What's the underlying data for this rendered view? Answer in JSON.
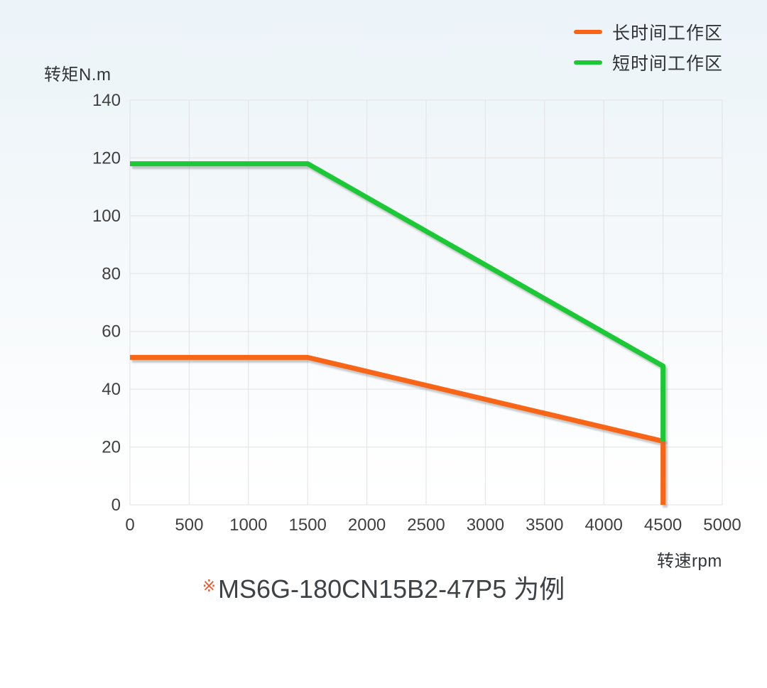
{
  "axes": {
    "y_title": "转矩N.m",
    "x_title": "转速rpm"
  },
  "legend": {
    "items": [
      {
        "label": "长时间工作区",
        "color": "#f96517"
      },
      {
        "label": "短时间工作区",
        "color": "#1dc837"
      }
    ]
  },
  "caption": {
    "mark": "※",
    "mark_color": "#f4572b",
    "text": "MS6G-180CN15B2-47P5 为例"
  },
  "colors": {
    "long_duty_line": "#f96517",
    "short_duty_line": "#1dc837",
    "grid": "#e2e2e2",
    "shadow": "#d4d4d4",
    "background_top": "#edf4f9",
    "background_bottom": "#ffffff",
    "text": "#3f3f3f"
  },
  "chart_data": {
    "type": "line",
    "title": "",
    "xlabel": "转速rpm",
    "ylabel": "转矩N.m",
    "xlim": [
      0,
      5000
    ],
    "ylim": [
      0,
      140
    ],
    "x_ticks": [
      0,
      500,
      1000,
      1500,
      2000,
      2500,
      3000,
      3500,
      4000,
      4500,
      5000
    ],
    "y_ticks": [
      0,
      20,
      40,
      60,
      80,
      100,
      120,
      140
    ],
    "grid": true,
    "legend_position": "top-right",
    "series": [
      {
        "name": "长时间工作区",
        "color": "#f96517",
        "points": [
          [
            0,
            51
          ],
          [
            1500,
            51
          ],
          [
            4500,
            22
          ],
          [
            4500,
            0
          ]
        ]
      },
      {
        "name": "短时间工作区",
        "color": "#1dc837",
        "points": [
          [
            0,
            118
          ],
          [
            1500,
            118
          ],
          [
            4500,
            48
          ],
          [
            4500,
            22
          ]
        ]
      }
    ]
  }
}
